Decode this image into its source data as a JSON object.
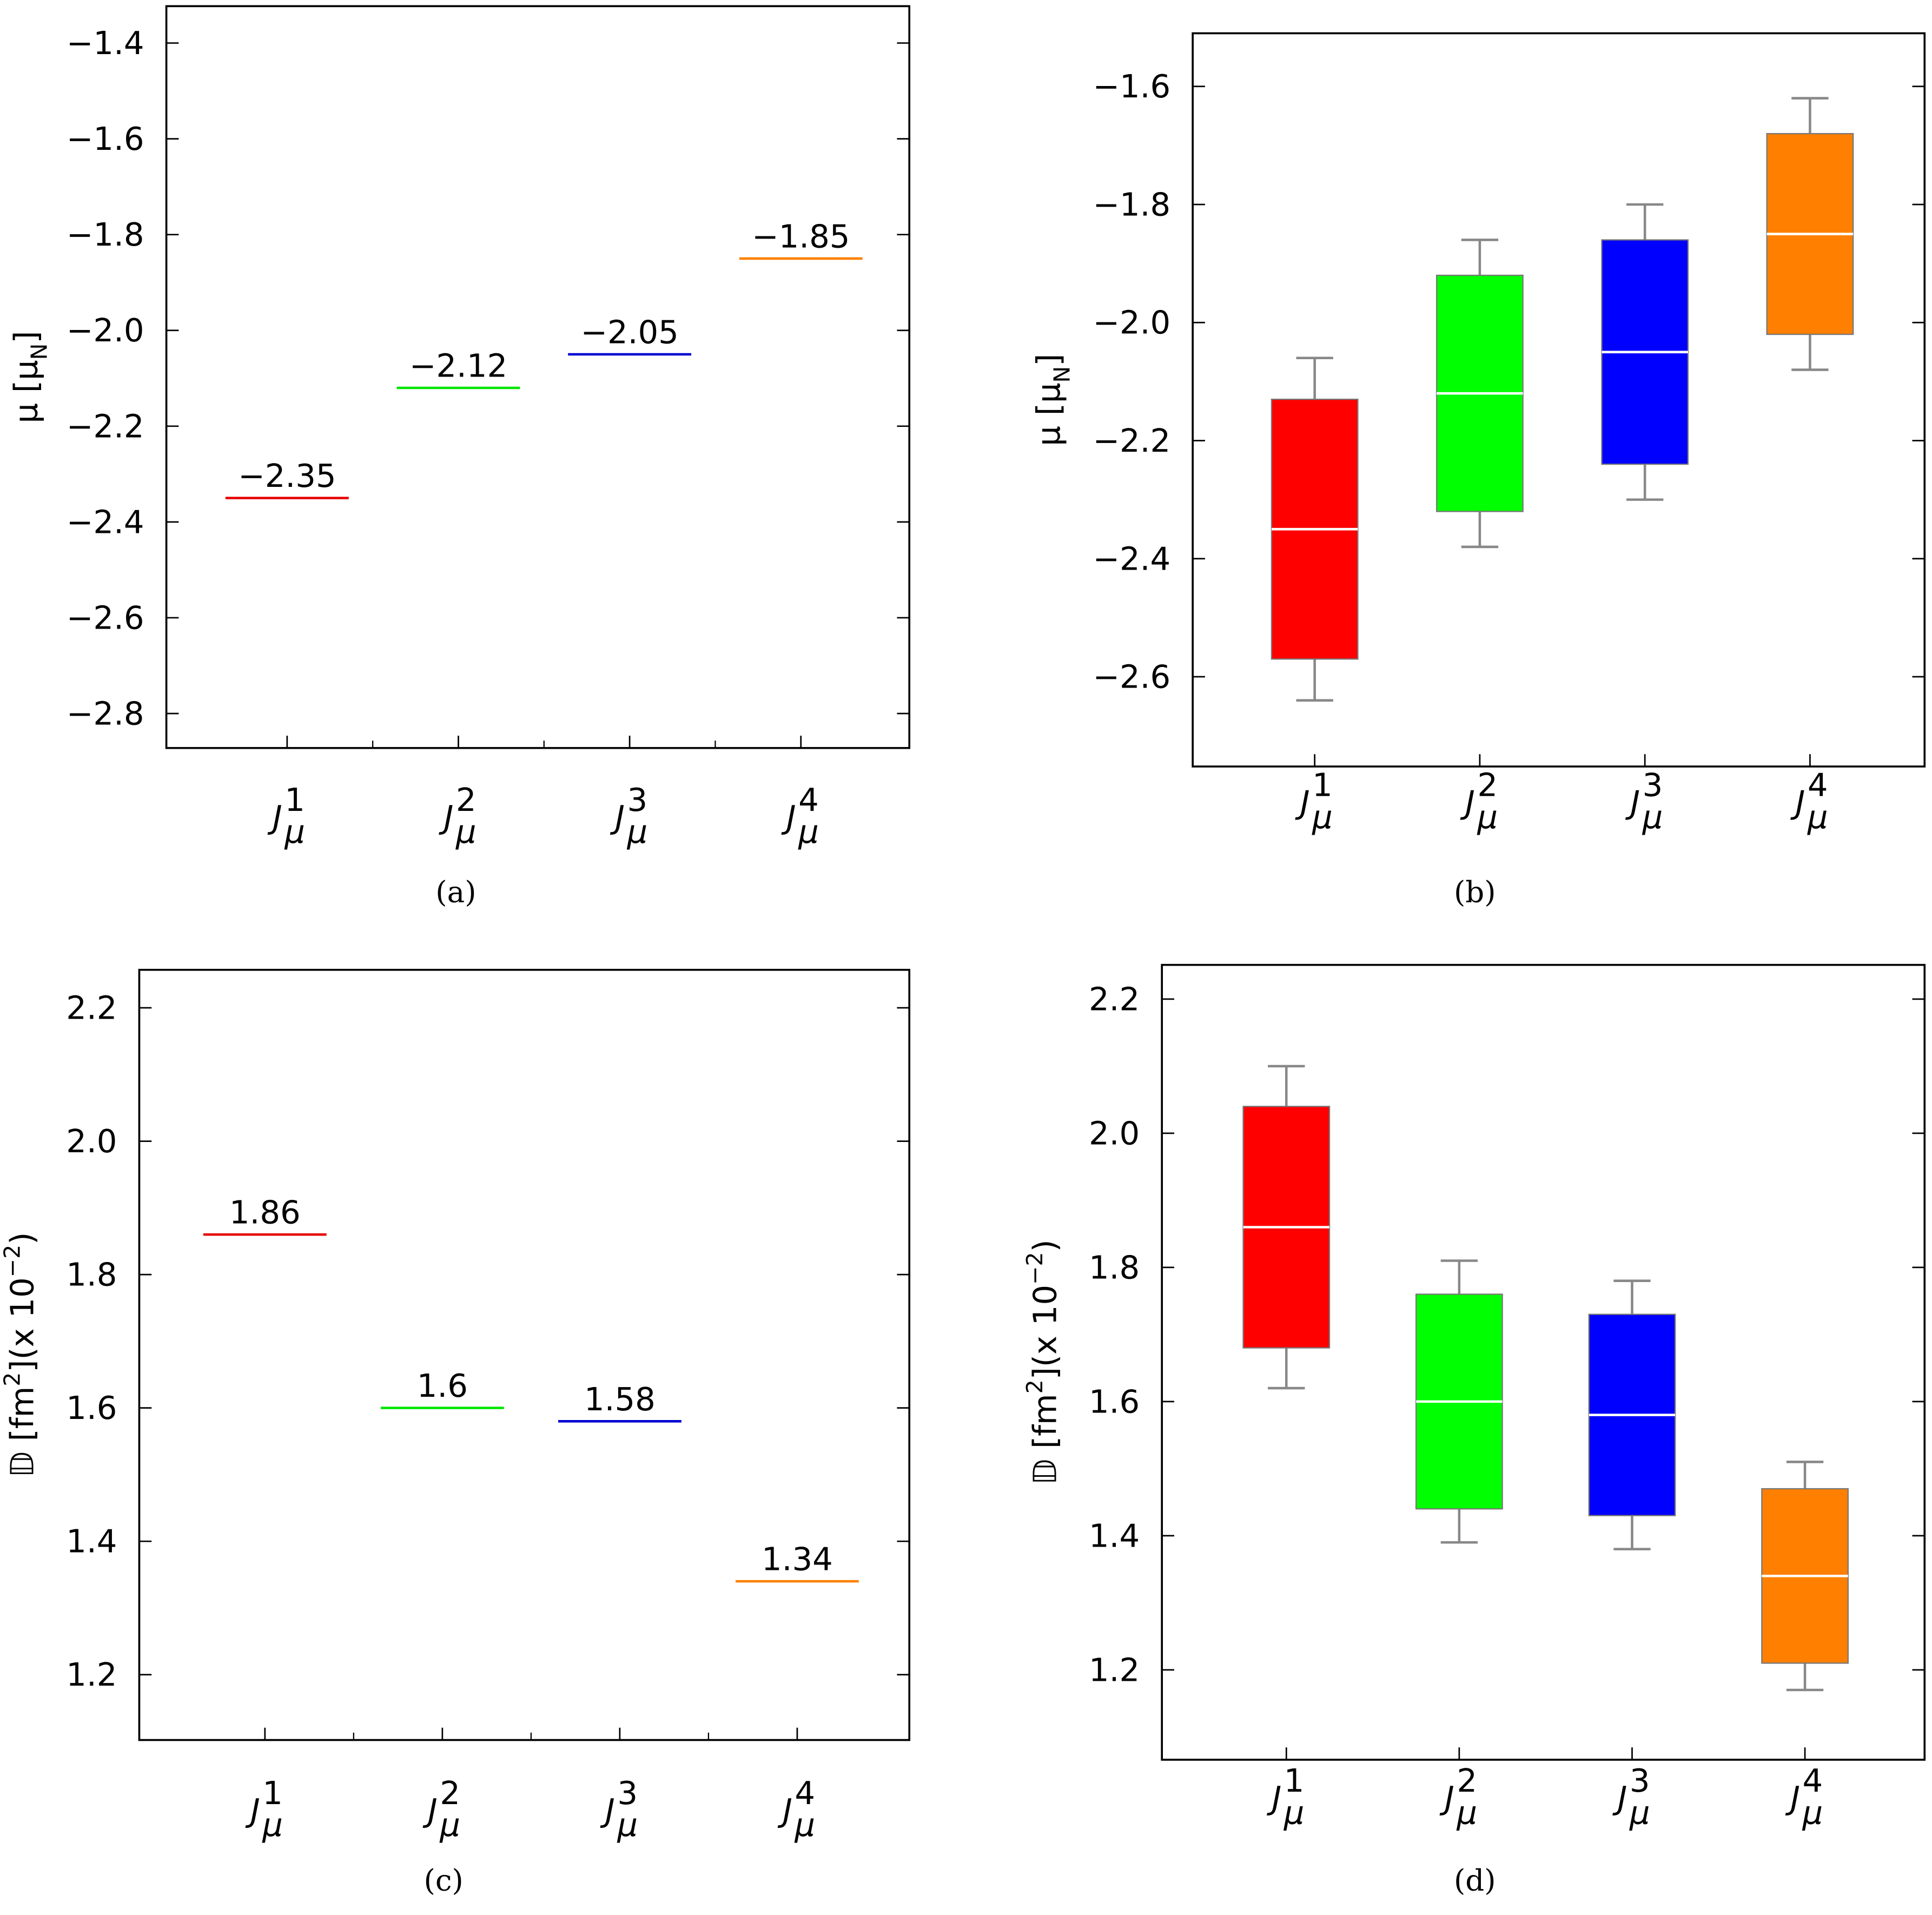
{
  "chart_data": [
    {
      "type": "level",
      "caption": "(a)",
      "ylabel": [
        {
          "text": "μ [μ"
        },
        {
          "text": "N",
          "script": "sub"
        },
        {
          "text": "]"
        }
      ],
      "categories": [
        {
          "symbol": "J",
          "sup": "1",
          "sub": "μ"
        },
        {
          "symbol": "J",
          "sup": "2",
          "sub": "μ"
        },
        {
          "symbol": "J",
          "sup": "3",
          "sub": "μ"
        },
        {
          "symbol": "J",
          "sup": "4",
          "sub": "μ"
        }
      ],
      "values": [
        -2.35,
        -2.12,
        -2.05,
        -1.85
      ],
      "value_labels": [
        "−2.35",
        "−2.12",
        "−2.05",
        "−1.85"
      ],
      "colors": [
        "#e60000",
        "#00e600",
        "#0000d0",
        "#ff8000"
      ],
      "ylim": [
        -2.872,
        -1.323
      ],
      "yticks": [
        {
          "value": -1.4,
          "label": "−1.4"
        },
        {
          "value": -1.6,
          "label": "−1.6"
        },
        {
          "value": -1.8,
          "label": "−1.8"
        },
        {
          "value": -2.0,
          "label": "−2.0"
        },
        {
          "value": -2.2,
          "label": "−2.2"
        },
        {
          "value": -2.4,
          "label": "−2.4"
        },
        {
          "value": -2.6,
          "label": "−2.6"
        },
        {
          "value": -2.8,
          "label": "−2.8"
        }
      ]
    },
    {
      "type": "box",
      "caption": "(b)",
      "ylabel": [
        {
          "text": "μ [μ"
        },
        {
          "text": "N",
          "script": "sub"
        },
        {
          "text": "]"
        }
      ],
      "categories": [
        {
          "symbol": "J",
          "sup": "1",
          "sub": "μ"
        },
        {
          "symbol": "J",
          "sup": "2",
          "sub": "μ"
        },
        {
          "symbol": "J",
          "sup": "3",
          "sub": "μ"
        },
        {
          "symbol": "J",
          "sup": "4",
          "sub": "μ"
        }
      ],
      "boxes": [
        {
          "whisker_high": -2.06,
          "q3": -2.13,
          "median": -2.35,
          "q1": -2.57,
          "whisker_low": -2.64
        },
        {
          "whisker_high": -1.86,
          "q3": -1.92,
          "median": -2.12,
          "q1": -2.32,
          "whisker_low": -2.38
        },
        {
          "whisker_high": -1.8,
          "q3": -1.86,
          "median": -2.05,
          "q1": -2.24,
          "whisker_low": -2.3
        },
        {
          "whisker_high": -1.62,
          "q3": -1.68,
          "median": -1.85,
          "q1": -2.02,
          "whisker_low": -2.08
        }
      ],
      "colors": [
        "#ff0000",
        "#00ff00",
        "#0000ff",
        "#ff8000"
      ],
      "ylim": [
        -2.752,
        -1.51
      ],
      "yticks": [
        {
          "value": -1.6,
          "label": "−1.6"
        },
        {
          "value": -1.8,
          "label": "−1.8"
        },
        {
          "value": -2.0,
          "label": "−2.0"
        },
        {
          "value": -2.2,
          "label": "−2.2"
        },
        {
          "value": -2.4,
          "label": "−2.4"
        },
        {
          "value": -2.6,
          "label": "−2.6"
        }
      ]
    },
    {
      "type": "level",
      "caption": "(c)",
      "ylabel": [
        {
          "text": "𝔻 [fm"
        },
        {
          "text": "2",
          "script": "super"
        },
        {
          "text": "](x 10"
        },
        {
          "text": "−2",
          "script": "super"
        },
        {
          "text": ")"
        }
      ],
      "categories": [
        {
          "symbol": "J",
          "sup": "1",
          "sub": "μ"
        },
        {
          "symbol": "J",
          "sup": "2",
          "sub": "μ"
        },
        {
          "symbol": "J",
          "sup": "3",
          "sub": "μ"
        },
        {
          "symbol": "J",
          "sup": "4",
          "sub": "μ"
        }
      ],
      "values": [
        1.86,
        1.6,
        1.58,
        1.34
      ],
      "colors": [
        "#e60000",
        "#00e600",
        "#0000d0",
        "#ff8000"
      ],
      "ylim": [
        1.102,
        2.257
      ],
      "yticks": [
        1.2,
        1.4,
        1.6,
        1.8,
        {
          "value": 2.0,
          "label": "2.0"
        },
        2.2
      ]
    },
    {
      "type": "box",
      "caption": "(d)",
      "ylabel": [
        {
          "text": "𝔻 [fm"
        },
        {
          "text": "2",
          "script": "super"
        },
        {
          "text": "](x 10"
        },
        {
          "text": "−2",
          "script": "super"
        },
        {
          "text": ")"
        }
      ],
      "categories": [
        {
          "symbol": "J",
          "sup": "1",
          "sub": "μ"
        },
        {
          "symbol": "J",
          "sup": "2",
          "sub": "μ"
        },
        {
          "symbol": "J",
          "sup": "3",
          "sub": "μ"
        },
        {
          "symbol": "J",
          "sup": "4",
          "sub": "μ"
        }
      ],
      "boxes": [
        {
          "whisker_high": 2.1,
          "q3": 2.04,
          "median": 1.86,
          "q1": 1.68,
          "whisker_low": 1.62
        },
        {
          "whisker_high": 1.81,
          "q3": 1.76,
          "median": 1.6,
          "q1": 1.44,
          "whisker_low": 1.39
        },
        {
          "whisker_high": 1.78,
          "q3": 1.73,
          "median": 1.58,
          "q1": 1.43,
          "whisker_low": 1.38
        },
        {
          "whisker_high": 1.51,
          "q3": 1.47,
          "median": 1.34,
          "q1": 1.21,
          "whisker_low": 1.17
        }
      ],
      "colors": [
        "#ff0000",
        "#00ff00",
        "#0000ff",
        "#ff8000"
      ],
      "ylim": [
        1.066,
        2.251
      ],
      "yticks": [
        1.2,
        1.4,
        1.6,
        1.8,
        {
          "value": 2.0,
          "label": "2.0"
        },
        2.2
      ]
    }
  ]
}
